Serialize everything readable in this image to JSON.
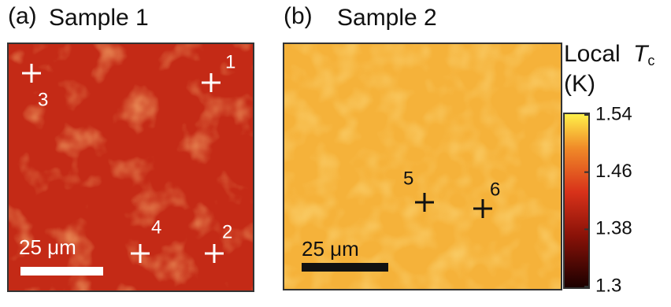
{
  "panels": [
    {
      "label": "(a)",
      "title": "Sample 1",
      "markers": [
        "1",
        "2",
        "3",
        "4"
      ],
      "scale_bar": "25 μm"
    },
    {
      "label": "(b)",
      "title": "Sample 2",
      "markers": [
        "5",
        "6"
      ],
      "scale_bar": "25 μm"
    }
  ],
  "colorbar": {
    "title": "Local",
    "symbol": "T",
    "subscript": "c",
    "unit": "(K)",
    "lim": [
      1.3,
      1.54
    ],
    "ticks": [
      1.54,
      1.46,
      1.38,
      1.3
    ]
  }
}
